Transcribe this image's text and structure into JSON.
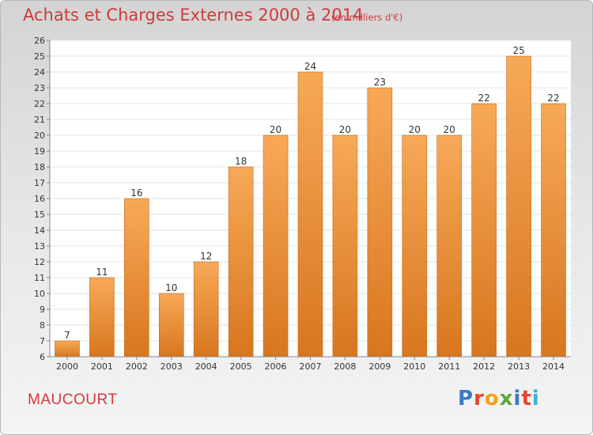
{
  "header": {
    "title": "Achats et Charges Externes 2000 à 2014",
    "subtitle": "(en milliers d'€)"
  },
  "footer": {
    "place": "MAUCOURT",
    "brand": "Proxiti",
    "brand_colors": [
      "#3b78c2",
      "#e8452c",
      "#f2a01b",
      "#5aaa3a",
      "#3b78c2",
      "#e8452c",
      "#3bb2d6"
    ]
  },
  "colors": {
    "bar_top": "#f7a958",
    "bar_bottom": "#d8761f",
    "bar_edge": "#c76a18",
    "plot_bg": "#ffffff",
    "grid": "#e6e6e6",
    "text": "#333333",
    "title": "#d03a3a"
  },
  "chart_data": {
    "type": "bar",
    "categories": [
      "2000",
      "2001",
      "2002",
      "2003",
      "2004",
      "2005",
      "2006",
      "2007",
      "2008",
      "2009",
      "2010",
      "2011",
      "2012",
      "2013",
      "2014"
    ],
    "values": [
      7,
      11,
      16,
      10,
      12,
      18,
      20,
      24,
      20,
      23,
      20,
      20,
      22,
      25,
      22
    ],
    "title": "Achats et Charges Externes 2000 à 2014",
    "ylim": [
      6,
      26
    ],
    "yticks": [
      6,
      7,
      8,
      9,
      10,
      11,
      12,
      13,
      14,
      15,
      16,
      17,
      18,
      19,
      20,
      21,
      22,
      23,
      24,
      25,
      26
    ],
    "grid": true,
    "data_labels": true
  }
}
